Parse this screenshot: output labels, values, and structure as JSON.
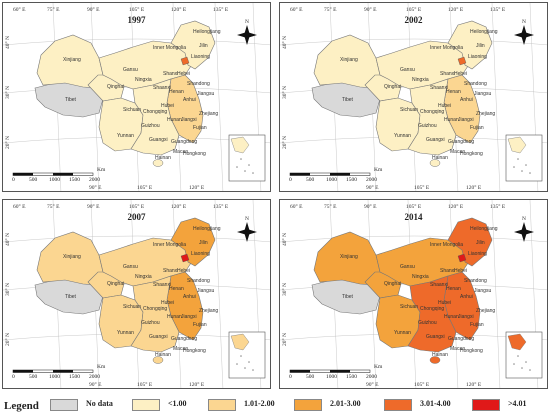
{
  "panels": [
    {
      "year": "1997",
      "level": {
        "north": 1,
        "northwest": 1,
        "northeast": 1,
        "south": 1,
        "southwest": 1,
        "east": 2,
        "beijing": 4
      }
    },
    {
      "year": "2002",
      "level": {
        "north": 1,
        "northwest": 1,
        "northeast": 1,
        "south": 1,
        "southwest": 1,
        "east": 2,
        "beijing": 4
      }
    },
    {
      "year": "2007",
      "level": {
        "north": 2,
        "northwest": 2,
        "northeast": 3,
        "south": 2,
        "southwest": 2,
        "east": 3,
        "beijing": 5
      }
    },
    {
      "year": "2014",
      "level": {
        "north": 3,
        "northwest": 3,
        "northeast": 4,
        "south": 4,
        "southwest": 3,
        "east": 4,
        "beijing": 5
      }
    }
  ],
  "provinces": [
    "Heilongjiang",
    "Jilin",
    "Liaoning",
    "Inner Mongolia",
    "Xinjiang",
    "Tibet",
    "Qinghai",
    "Gansu",
    "Ningxia",
    "Shaanxi",
    "Shanxi",
    "Hebei",
    "Henan",
    "Shandong",
    "Hubei",
    "Sichuan",
    "Chongqing",
    "Hunan",
    "Guizhou",
    "Yunnan",
    "Guangxi",
    "Guangdong",
    "Jiangxi",
    "Zhejiang",
    "Fujian",
    "Hainan",
    "Macao",
    "Hongkong",
    "Anhui",
    "Jiangsu"
  ],
  "axes": {
    "top": [
      "60° E",
      "75° E",
      "90° E",
      "105° E",
      "120° E",
      "135° E"
    ],
    "bottom": [
      "90° E",
      "105° E",
      "120° E"
    ],
    "left": [
      "40° N",
      "30° N",
      "20° N"
    ]
  },
  "scale": {
    "ticks": [
      "0",
      "500",
      "1000",
      "1500",
      "2000"
    ],
    "unit": "Km"
  },
  "north_symbol": "N",
  "legend": {
    "title": "Legend",
    "items": [
      {
        "label": "No data",
        "color": "#d9d9d9"
      },
      {
        "label": "<1.00",
        "color": "#fdf0c4"
      },
      {
        "label": "1.01-2.00",
        "color": "#fbd691"
      },
      {
        "label": "2.01-3.00",
        "color": "#f3a33c"
      },
      {
        "label": "3.01-4.00",
        "color": "#ee6a2a"
      },
      {
        "label": ">4.01",
        "color": "#e01919"
      }
    ]
  }
}
